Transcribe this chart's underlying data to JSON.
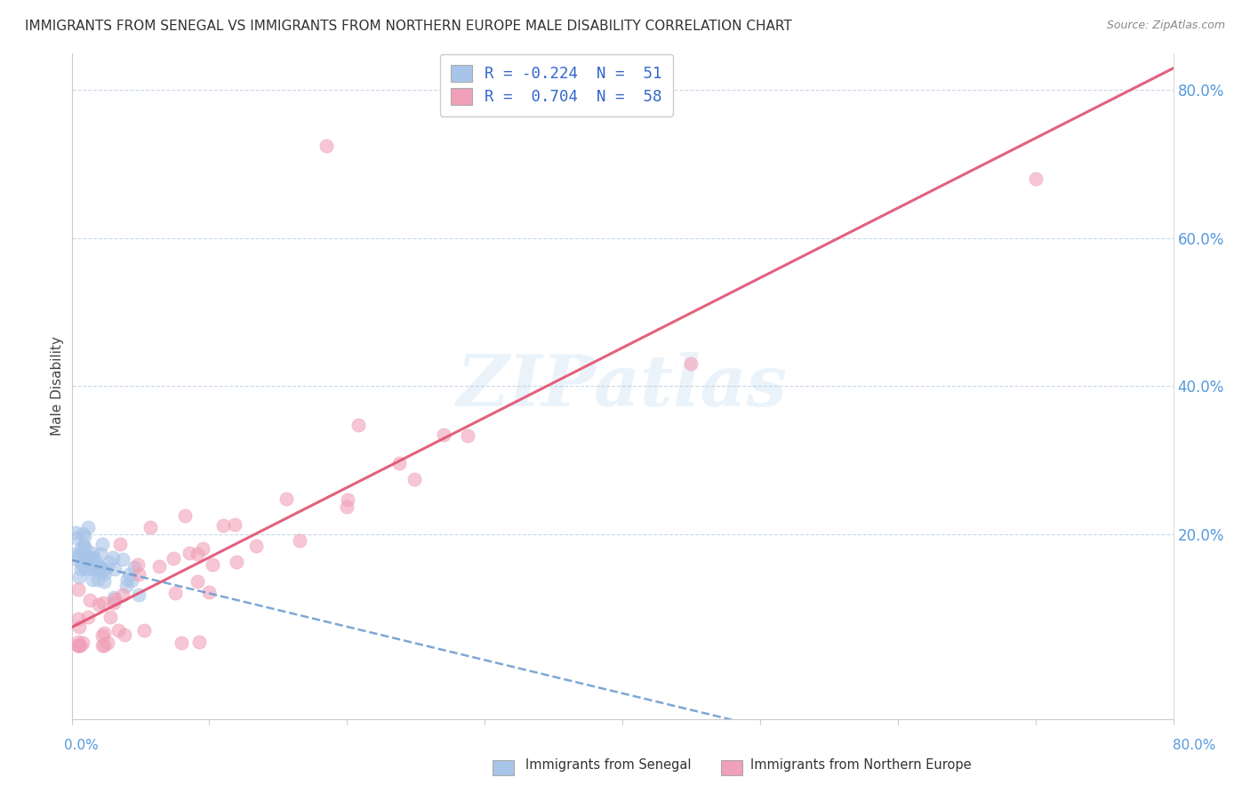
{
  "title": "IMMIGRANTS FROM SENEGAL VS IMMIGRANTS FROM NORTHERN EUROPE MALE DISABILITY CORRELATION CHART",
  "source": "Source: ZipAtlas.com",
  "ylabel": "Male Disability",
  "xlim": [
    0.0,
    0.8
  ],
  "ylim": [
    -0.05,
    0.85
  ],
  "color_senegal": "#a8c4e8",
  "color_northern": "#f0a0b8",
  "line_senegal": "#6699cc",
  "line_northern": "#e05070",
  "background_color": "#ffffff",
  "grid_color": "#c8d8e8",
  "ytick_color": "#5599dd",
  "border_color": "#cccccc"
}
